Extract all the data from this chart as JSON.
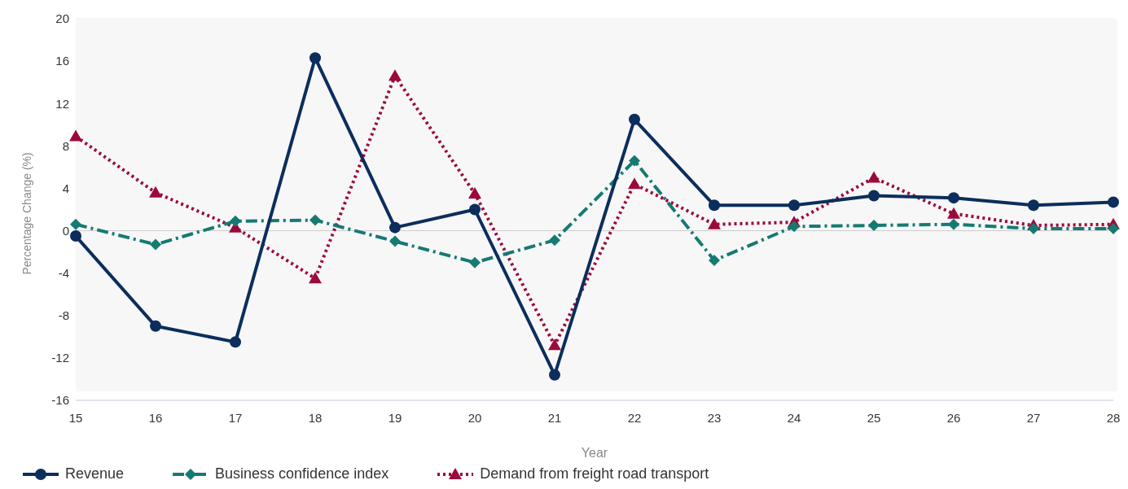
{
  "chart_data": {
    "type": "line",
    "xlabel": "Year",
    "ylabel": "Percentage Change (%)",
    "categories": [
      "15",
      "16",
      "17",
      "18",
      "19",
      "20",
      "21",
      "22",
      "23",
      "24",
      "25",
      "26",
      "27",
      "28"
    ],
    "series": [
      {
        "name": "Revenue",
        "color": "#0b2e5c",
        "marker": "circle",
        "line_style": "solid",
        "values": [
          -0.5,
          -9.0,
          -10.5,
          16.3,
          0.3,
          2.0,
          -13.6,
          10.5,
          2.4,
          2.4,
          3.3,
          3.1,
          2.4,
          2.7
        ]
      },
      {
        "name": "Business confidence index",
        "color": "#157a72",
        "marker": "diamond",
        "line_style": "dashed",
        "values": [
          0.6,
          -1.3,
          0.9,
          1.0,
          -1.0,
          -3.0,
          -0.9,
          6.6,
          -2.8,
          0.4,
          0.5,
          0.6,
          0.2,
          0.2
        ]
      },
      {
        "name": "Demand from freight road transport",
        "color": "#9b0a3a",
        "marker": "triangle",
        "line_style": "dotted",
        "values": [
          8.9,
          3.6,
          0.3,
          -4.5,
          14.6,
          3.5,
          -10.8,
          4.4,
          0.6,
          0.8,
          5.0,
          1.6,
          0.5,
          0.6
        ]
      }
    ],
    "ylim": [
      -16,
      20
    ],
    "yticks": [
      -16,
      -12,
      -8,
      -4,
      0,
      4,
      8,
      12,
      16,
      20
    ],
    "grid": "y",
    "legend": "bottom left"
  }
}
